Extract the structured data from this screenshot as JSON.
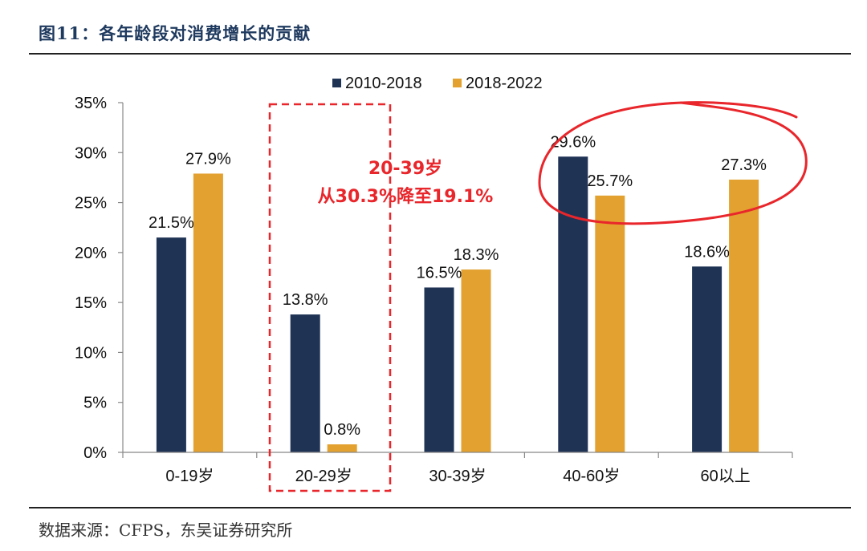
{
  "figure": {
    "title": "图11：各年龄段对消费增长的贡献",
    "source": "数据来源：CFPS，东吴证券研究所"
  },
  "colors": {
    "series_2010_2018": "#1f3355",
    "series_2018_2022": "#e3a12f",
    "annotation_red": "#e8262b"
  },
  "chart_data": {
    "type": "bar",
    "categories": [
      "0-19岁",
      "20-29岁",
      "30-39岁",
      "40-60岁",
      "60以上"
    ],
    "series": [
      {
        "name": "2010-2018",
        "values": [
          21.5,
          13.8,
          16.5,
          29.6,
          18.6
        ]
      },
      {
        "name": "2018-2022",
        "values": [
          27.9,
          0.8,
          18.3,
          25.7,
          27.3
        ]
      }
    ],
    "ylim": [
      0,
      35
    ],
    "yticks": [
      0,
      5,
      10,
      15,
      20,
      25,
      30,
      35
    ],
    "ytick_suffix": "%",
    "value_suffix": "%",
    "legend_position": "top",
    "grid": false,
    "annotations": {
      "line1": "20-39岁",
      "line2": "从30.3%降至19.1%",
      "dashed_box_category": "20-29岁",
      "circled_category": "40-60岁 / 60以上"
    }
  }
}
